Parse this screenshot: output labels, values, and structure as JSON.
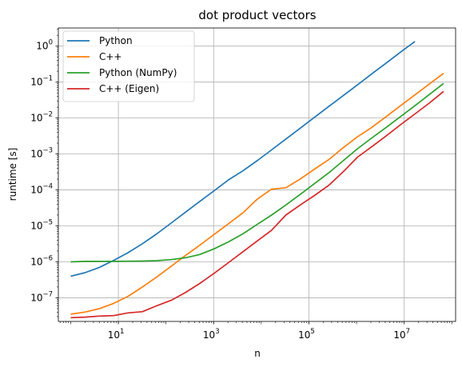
{
  "chart_data": {
    "type": "line",
    "title": "dot product vectors",
    "xlabel": "n",
    "ylabel": "runtime [s]",
    "xscale": "log",
    "yscale": "log",
    "xlim": [
      0.55,
      120000000.0
    ],
    "ylim": [
      2.2e-08,
      3.2
    ],
    "grid": true,
    "legend_position": "top-left",
    "x_ticks": [
      {
        "value": 10,
        "base": "10",
        "exp": "1"
      },
      {
        "value": 1000,
        "base": "10",
        "exp": "3"
      },
      {
        "value": 100000,
        "base": "10",
        "exp": "5"
      },
      {
        "value": 10000000,
        "base": "10",
        "exp": "7"
      }
    ],
    "y_ticks": [
      {
        "value": 1e-07,
        "base": "10",
        "exp": "−7"
      },
      {
        "value": 1e-06,
        "base": "10",
        "exp": "−6"
      },
      {
        "value": 1e-05,
        "base": "10",
        "exp": "−5"
      },
      {
        "value": 0.0001,
        "base": "10",
        "exp": "−4"
      },
      {
        "value": 0.001,
        "base": "10",
        "exp": "−3"
      },
      {
        "value": 0.01,
        "base": "10",
        "exp": "−2"
      },
      {
        "value": 0.1,
        "base": "10",
        "exp": "−1"
      },
      {
        "value": 1,
        "base": "10",
        "exp": "0"
      }
    ],
    "series": [
      {
        "name": "Python",
        "color": "#1f77b4",
        "x": [
          1,
          2,
          4,
          8,
          16,
          32,
          64,
          128,
          256,
          512,
          1024,
          2048,
          4096,
          8192,
          16384,
          32768,
          65536,
          131072,
          262144,
          524288,
          1048576,
          2097152,
          4194304,
          8388608,
          16777216
        ],
        "y": [
          4e-07,
          5e-07,
          7e-07,
          1.1e-06,
          1.8e-06,
          3.2e-06,
          6e-06,
          1.2e-05,
          2.4e-05,
          4.8e-05,
          9.5e-05,
          0.00019,
          0.00034,
          0.00065,
          0.0013,
          0.0026,
          0.0052,
          0.0105,
          0.021,
          0.042,
          0.084,
          0.17,
          0.34,
          0.68,
          1.35
        ]
      },
      {
        "name": "C++",
        "color": "#ff7f0e",
        "x": [
          1,
          2,
          4,
          8,
          16,
          32,
          64,
          128,
          256,
          512,
          1024,
          2048,
          4096,
          8192,
          16384,
          32768,
          65536,
          131072,
          262144,
          524288,
          1048576,
          2097152,
          4194304,
          8388608,
          16777216,
          33554432,
          67108864
        ],
        "y": [
          3.5e-08,
          4e-08,
          5e-08,
          7e-08,
          1.1e-07,
          2e-07,
          3.8e-07,
          7.5e-07,
          1.5e-06,
          2.9e-06,
          5.8e-06,
          1.15e-05,
          2.3e-05,
          5.5e-05,
          0.000105,
          0.000115,
          0.0002,
          0.00038,
          0.0007,
          0.0015,
          0.003,
          0.0055,
          0.011,
          0.022,
          0.044,
          0.088,
          0.175
        ]
      },
      {
        "name": "Python (NumPy)",
        "color": "#2ca02c",
        "x": [
          1,
          2,
          4,
          8,
          16,
          32,
          64,
          128,
          256,
          512,
          1024,
          2048,
          4096,
          8192,
          16384,
          32768,
          65536,
          131072,
          262144,
          524288,
          1048576,
          2097152,
          4194304,
          8388608,
          16777216,
          33554432,
          67108864
        ],
        "y": [
          1e-06,
          1.03e-06,
          1.03e-06,
          1.03e-06,
          1.04e-06,
          1.05e-06,
          1.08e-06,
          1.15e-06,
          1.3e-06,
          1.6e-06,
          2.3e-06,
          3.6e-06,
          6e-06,
          1.1e-05,
          2e-05,
          3.8e-05,
          7.5e-05,
          0.00015,
          0.0003,
          0.00065,
          0.0014,
          0.0028,
          0.0055,
          0.011,
          0.022,
          0.045,
          0.092
        ]
      },
      {
        "name": "C++ (Eigen)",
        "color": "#d62728",
        "x": [
          1,
          2,
          4,
          8,
          16,
          32,
          64,
          128,
          256,
          512,
          1024,
          2048,
          4096,
          8192,
          16384,
          32768,
          65536,
          131072,
          262144,
          524288,
          1048576,
          2097152,
          4194304,
          8388608,
          16777216,
          33554432,
          67108864
        ],
        "y": [
          2.8e-08,
          2.9e-08,
          3.1e-08,
          3.2e-08,
          3.8e-08,
          4.1e-08,
          6e-08,
          8.5e-08,
          1.4e-07,
          2.5e-07,
          4.8e-07,
          9.5e-07,
          1.9e-06,
          3.8e-06,
          7.5e-06,
          2e-05,
          3.8e-05,
          7e-05,
          0.000135,
          0.00032,
          0.00082,
          0.0016,
          0.0032,
          0.0065,
          0.013,
          0.026,
          0.055
        ]
      }
    ]
  }
}
